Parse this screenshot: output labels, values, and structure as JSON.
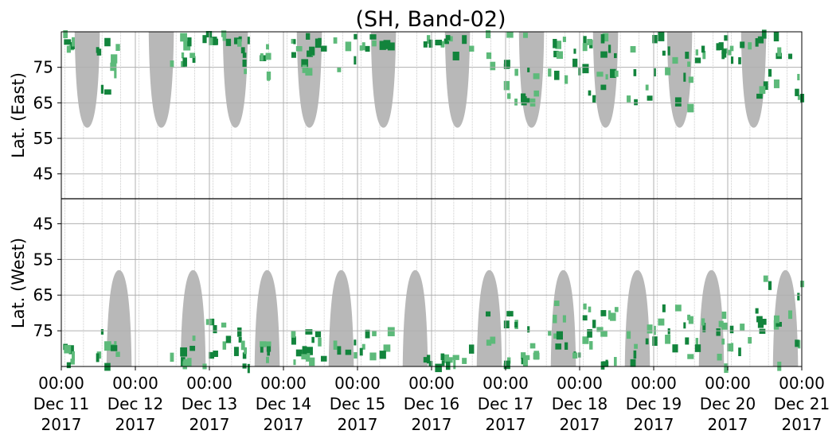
{
  "chart_data": {
    "type": "heatmap",
    "title": "(SH, Band-02)",
    "ylabel_top": "Lat. (East)",
    "ylabel_bottom": "Lat. (West)",
    "x_ticks": [
      {
        "time": "00:00",
        "date": "Dec 11",
        "year": "2017"
      },
      {
        "time": "00:00",
        "date": "Dec 12",
        "year": "2017"
      },
      {
        "time": "00:00",
        "date": "Dec 13",
        "year": "2017"
      },
      {
        "time": "00:00",
        "date": "Dec 14",
        "year": "2017"
      },
      {
        "time": "00:00",
        "date": "Dec 15",
        "year": "2017"
      },
      {
        "time": "00:00",
        "date": "Dec 16",
        "year": "2017"
      },
      {
        "time": "00:00",
        "date": "Dec 17",
        "year": "2017"
      },
      {
        "time": "00:00",
        "date": "Dec 18",
        "year": "2017"
      },
      {
        "time": "00:00",
        "date": "Dec 19",
        "year": "2017"
      },
      {
        "time": "00:00",
        "date": "Dec 20",
        "year": "2017"
      },
      {
        "time": "00:00",
        "date": "Dec 21",
        "year": "2017"
      }
    ],
    "xlim": [
      "2017-12-11 00:00",
      "2017-12-21 00:00"
    ],
    "y_ticks_east": [
      "45",
      "55",
      "65",
      "75"
    ],
    "y_ticks_west": [
      "75",
      "65",
      "55",
      "45"
    ],
    "y_tick_values_east": [
      45,
      55,
      65,
      75
    ],
    "y_tick_values_west": [
      75,
      65,
      55,
      45
    ],
    "ylim_each_panel": [
      38,
      85
    ],
    "grid": true,
    "colors": {
      "activity_light": "#5dba7a",
      "activity_dark": "#12843c",
      "gap": "#b8b8b8",
      "grid": "#b0b0b0",
      "axes": "#000000"
    },
    "activity_bands": [
      {
        "start": "2017-12-11 00:00",
        "end": "2017-12-11 05:00",
        "lat_east": [
          80,
          85
        ],
        "lat_west": [
          78,
          85
        ],
        "intensity": "high"
      },
      {
        "start": "2017-12-11 11:00",
        "end": "2017-12-11 22:00",
        "lat_east": [
          68,
          85
        ],
        "lat_west": [
          75,
          85
        ],
        "intensity": "high"
      },
      {
        "start": "2017-12-12 09:00",
        "end": "2017-12-12 21:00",
        "lat_east": [
          76,
          85
        ],
        "lat_west": [
          77,
          85
        ],
        "intensity": "high"
      },
      {
        "start": "2017-12-12 21:00",
        "end": "2017-12-13 12:00",
        "lat_east": [
          82,
          85
        ],
        "lat_west": [
          72,
          85
        ],
        "intensity": "medium"
      },
      {
        "start": "2017-12-13 10:00",
        "end": "2017-12-14 00:00",
        "lat_east": [
          72,
          85
        ],
        "lat_west": [
          78,
          85
        ],
        "intensity": "high"
      },
      {
        "start": "2017-12-14 00:00",
        "end": "2017-12-15 00:00",
        "lat_east": [
          74,
          85
        ],
        "lat_west": [
          75,
          85
        ],
        "intensity": "high"
      },
      {
        "start": "2017-12-15 00:00",
        "end": "2017-12-15 10:00",
        "lat_east": [
          80,
          85
        ],
        "lat_west": [
          74,
          85
        ],
        "intensity": "medium"
      },
      {
        "start": "2017-12-15 21:00",
        "end": "2017-12-16 12:00",
        "lat_east": [
          77,
          85
        ],
        "lat_west": [
          82,
          85
        ],
        "intensity": "medium"
      },
      {
        "start": "2017-12-16 12:00",
        "end": "2017-12-17 12:00",
        "lat_east": [
          65,
          85
        ],
        "lat_west": [
          70,
          85
        ],
        "intensity": "high"
      },
      {
        "start": "2017-12-17 12:00",
        "end": "2017-12-18 12:00",
        "lat_east": [
          72,
          85
        ],
        "lat_west": [
          66,
          85
        ],
        "intensity": "high"
      },
      {
        "start": "2017-12-18 00:00",
        "end": "2017-12-19 12:00",
        "lat_east": [
          64,
          85
        ],
        "lat_west": [
          68,
          85
        ],
        "intensity": "high"
      },
      {
        "start": "2017-12-19 12:00",
        "end": "2017-12-20 12:00",
        "lat_east": [
          76,
          85
        ],
        "lat_west": [
          70,
          85
        ],
        "intensity": "high"
      },
      {
        "start": "2017-12-20 06:00",
        "end": "2017-12-21 00:00",
        "lat_east": [
          66,
          85
        ],
        "lat_west": [
          60,
          85
        ],
        "intensity": "high"
      }
    ]
  }
}
